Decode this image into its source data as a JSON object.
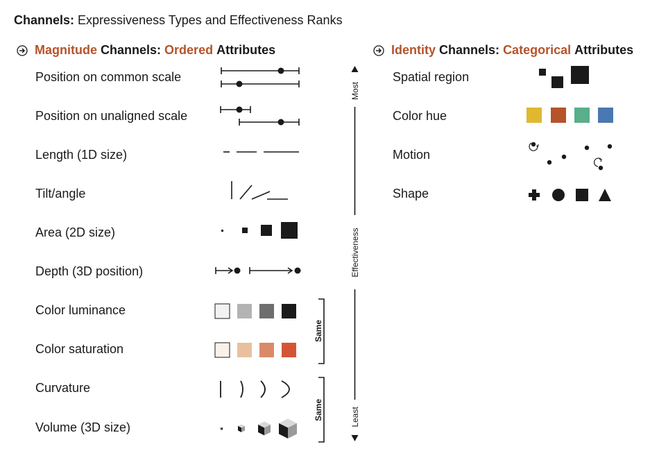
{
  "title": {
    "bold": "Channels:",
    "rest": "Expressiveness Types and Effectiveness Ranks"
  },
  "magnitude": {
    "header": {
      "w1": "Magnitude",
      "w2": "Channels:",
      "w3": "Ordered",
      "w4": "Attributes"
    },
    "rows": [
      {
        "label": "Position on common scale"
      },
      {
        "label": "Position on unaligned scale"
      },
      {
        "label": "Length (1D size)"
      },
      {
        "label": "Tilt/angle"
      },
      {
        "label": "Area (2D size)"
      },
      {
        "label": "Depth (3D position)"
      },
      {
        "label": "Color luminance"
      },
      {
        "label": "Color saturation"
      },
      {
        "label": "Curvature"
      },
      {
        "label": "Volume (3D size)"
      }
    ],
    "bracket_label": "Same"
  },
  "effectiveness": {
    "top": "Most",
    "middle": "Effectiveness",
    "bottom": "Least"
  },
  "identity": {
    "header": {
      "w1": "Identity",
      "w2": "Channels:",
      "w3": "Categorical",
      "w4": "Attributes"
    },
    "rows": [
      {
        "label": "Spatial region"
      },
      {
        "label": "Color hue"
      },
      {
        "label": "Motion"
      },
      {
        "label": "Shape"
      }
    ]
  },
  "colors": {
    "accent": "#b5532a",
    "ink": "#1a1a1a",
    "luminance": [
      "#f2f2f2",
      "#b3b3b3",
      "#6e6e6e",
      "#1a1a1a"
    ],
    "saturation": [
      "#fbf1e9",
      "#e8c0a0",
      "#d98a68",
      "#d45535"
    ],
    "hue": [
      "#e0b830",
      "#b5532a",
      "#5aae8a",
      "#4a78b0"
    ]
  },
  "icons": {
    "header_arrow": "circled-right-arrow-icon",
    "shapes": [
      "plus-icon",
      "circle-icon",
      "square-icon",
      "triangle-icon"
    ]
  }
}
